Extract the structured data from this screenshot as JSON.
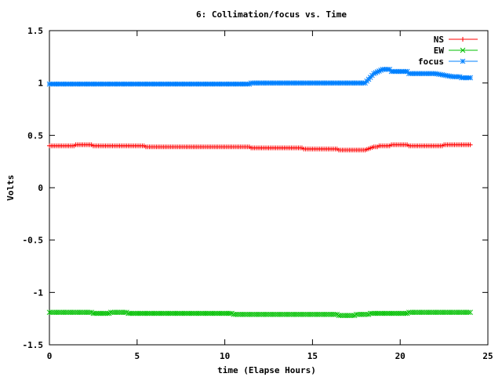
{
  "chart_data": {
    "type": "scatter",
    "title": "6: Collimation/focus vs. Time",
    "xlabel": "time (Elapse Hours)",
    "ylabel": "Volts",
    "xlim": [
      0,
      25
    ],
    "ylim": [
      -1.5,
      1.5
    ],
    "xticks": [
      0,
      5,
      10,
      15,
      20,
      25
    ],
    "xtick_labels": [
      "0",
      "5",
      "10",
      "15",
      "20",
      "25"
    ],
    "yticks": [
      -1.5,
      -1,
      -0.5,
      0,
      0.5,
      1,
      1.5
    ],
    "ytick_labels": [
      "-1.5",
      "-1",
      "-0.5",
      "0",
      "0.5",
      "1",
      "1.5"
    ],
    "grid": false,
    "legend_position": "top-right",
    "series": [
      {
        "name": "NS",
        "color": "#ff0000",
        "marker": "plus",
        "x": [
          0,
          1,
          2,
          3,
          4,
          5,
          6,
          7,
          8,
          9,
          10,
          11,
          12,
          13,
          14,
          15,
          16,
          17,
          18,
          18.5,
          19,
          20,
          21,
          22,
          23,
          24
        ],
        "y": [
          0.4,
          0.4,
          0.41,
          0.4,
          0.4,
          0.4,
          0.39,
          0.39,
          0.39,
          0.39,
          0.39,
          0.39,
          0.38,
          0.38,
          0.38,
          0.37,
          0.37,
          0.36,
          0.36,
          0.39,
          0.4,
          0.41,
          0.4,
          0.4,
          0.41,
          0.41
        ]
      },
      {
        "name": "EW",
        "color": "#00c000",
        "marker": "x",
        "x": [
          0,
          1,
          2,
          3,
          4,
          5,
          6,
          7,
          8,
          9,
          10,
          11,
          12,
          13,
          14,
          15,
          16,
          17,
          18,
          18.5,
          19,
          20,
          21,
          22,
          23,
          24
        ],
        "y": [
          -1.19,
          -1.19,
          -1.19,
          -1.2,
          -1.19,
          -1.2,
          -1.2,
          -1.2,
          -1.2,
          -1.2,
          -1.2,
          -1.21,
          -1.21,
          -1.21,
          -1.21,
          -1.21,
          -1.21,
          -1.22,
          -1.21,
          -1.2,
          -1.2,
          -1.2,
          -1.19,
          -1.19,
          -1.19,
          -1.19
        ]
      },
      {
        "name": "focus",
        "color": "#0080ff",
        "marker": "star",
        "x": [
          0,
          1,
          2,
          3,
          4,
          5,
          6,
          7,
          8,
          9,
          10,
          11,
          12,
          13,
          14,
          15,
          16,
          17,
          18,
          18.5,
          19,
          20,
          21,
          22,
          23,
          24
        ],
        "y": [
          0.99,
          0.99,
          0.99,
          0.99,
          0.99,
          0.99,
          0.99,
          0.99,
          0.99,
          0.99,
          0.99,
          0.99,
          1.0,
          1.0,
          1.0,
          1.0,
          1.0,
          1.0,
          1.0,
          1.09,
          1.13,
          1.11,
          1.09,
          1.09,
          1.06,
          1.05
        ]
      }
    ]
  }
}
